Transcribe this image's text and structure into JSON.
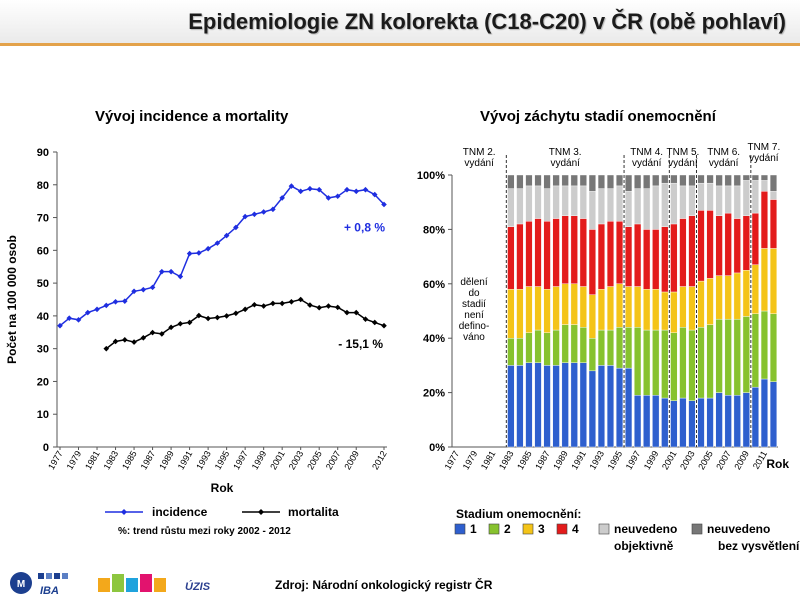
{
  "page": {
    "title": "Epidemiologie ZN kolorekta (C18-C20) v ČR (obě pohlaví)",
    "source": "Zdroj: Národní onkologický registr ČR",
    "logos": [
      "IBA",
      "ÚZIS"
    ]
  },
  "chart_data": [
    {
      "type": "line",
      "title": "Vývoj incidence a mortality",
      "xlabel": "Rok",
      "ylabel": "Počet na 100 000 osob",
      "ylim": [
        0,
        90
      ],
      "yticks": [
        0,
        10,
        20,
        30,
        40,
        50,
        60,
        70,
        80,
        90
      ],
      "x": [
        "1977",
        "1978",
        "1979",
        "1980",
        "1981",
        "1982",
        "1983",
        "1984",
        "1985",
        "1986",
        "1987",
        "1988",
        "1989",
        "1990",
        "1991",
        "1992",
        "1993",
        "1994",
        "1995",
        "1996",
        "1997",
        "1998",
        "1999",
        "2000",
        "2001",
        "2002",
        "2003",
        "2004",
        "2005",
        "2006",
        "2007",
        "2008",
        "2009",
        "2010",
        "2011",
        "2012"
      ],
      "xtick_labels": [
        "1977",
        "1979",
        "1981",
        "1983",
        "1985",
        "1987",
        "1989",
        "1991",
        "1993",
        "1995",
        "1997",
        "1999",
        "2001",
        "2003",
        "2005",
        "2007",
        "2009",
        "2012"
      ],
      "series": [
        {
          "name": "incidence",
          "color": "#1f2ee0",
          "values": [
            37.0,
            39.3,
            38.8,
            41.0,
            42.0,
            43.2,
            44.3,
            44.5,
            47.5,
            48.0,
            48.7,
            53.5,
            53.5,
            52.0,
            59.0,
            59.2,
            60.5,
            62.2,
            64.5,
            67.0,
            70.3,
            71.0,
            71.7,
            72.5,
            76.0,
            79.6,
            78.0,
            78.8,
            78.5,
            76.0,
            76.5,
            78.5,
            78.0,
            78.5,
            77.0,
            74.0
          ]
        },
        {
          "name": "mortalita",
          "color": "#000000",
          "values": [
            null,
            null,
            null,
            null,
            null,
            30.0,
            32.2,
            32.7,
            32.0,
            33.3,
            34.9,
            34.5,
            36.5,
            37.6,
            38.0,
            40.1,
            39.2,
            39.5,
            40.0,
            40.8,
            42.0,
            43.4,
            43.0,
            43.8,
            43.8,
            44.3,
            45.0,
            43.3,
            42.5,
            43.0,
            42.6,
            41.0,
            41.0,
            39.0,
            38.0,
            37.0
          ]
        }
      ],
      "annotations": [
        {
          "text": "+ 0,8 %",
          "series": "incidence",
          "color": "#1f2ee0"
        },
        {
          "text": "- 15,1 %",
          "series": "mortalita",
          "color": "#000000"
        }
      ],
      "legend": {
        "position": "bottom",
        "items": [
          "incidence",
          "mortalita"
        ]
      },
      "note": "%: trend růstu mezi roky 2002 - 2012",
      "grid": false
    },
    {
      "type": "bar",
      "stacked": "percent",
      "title": "Vývoj záchytu stadií onemocnění",
      "xlabel": "Rok",
      "ylim": [
        0,
        100
      ],
      "yticks": [
        "0%",
        "20%",
        "40%",
        "60%",
        "80%",
        "100%"
      ],
      "categories": [
        "1977",
        "1978",
        "1979",
        "1980",
        "1981",
        "1982",
        "1983",
        "1984",
        "1985",
        "1986",
        "1987",
        "1988",
        "1989",
        "1990",
        "1991",
        "1992",
        "1993",
        "1994",
        "1995",
        "1996",
        "1997",
        "1998",
        "1999",
        "2000",
        "2001",
        "2002",
        "2003",
        "2004",
        "2005",
        "2006",
        "2007",
        "2008",
        "2009",
        "2010",
        "2011",
        "2012"
      ],
      "xtick_labels": [
        "1977",
        "1979",
        "1981",
        "1983",
        "1985",
        "1987",
        "1989",
        "1991",
        "1993",
        "1995",
        "1997",
        "1999",
        "2001",
        "2003",
        "2005",
        "2007",
        "2009",
        "2011"
      ],
      "legend": {
        "position": "bottom",
        "title": "Stadium onemocnění:",
        "items": [
          {
            "label": "1",
            "color": "#2e5fce"
          },
          {
            "label": "2",
            "color": "#87c22e"
          },
          {
            "label": "3",
            "color": "#f4c418"
          },
          {
            "label": "4",
            "color": "#e31b1b"
          },
          {
            "label": "neuvedeno objektivně",
            "color": "#cccccc"
          },
          {
            "label": "neuvedeno bez vysvětlení",
            "color": "#777777"
          }
        ]
      },
      "period_labels": [
        {
          "text": "TNM 2. vydání"
        },
        {
          "text": "TNM 3. vydání"
        },
        {
          "text": "TNM 4. vydání"
        },
        {
          "text": "TNM 5. vydání"
        },
        {
          "text": "TNM 6. vydání"
        },
        {
          "text": "TNM 7. vydání"
        }
      ],
      "period_boundaries_after": [
        "1982",
        "1995",
        "2000",
        "2003",
        "2009"
      ],
      "undefined_period_note": "dělení do stadií není definováno",
      "series": [
        {
          "name": "1",
          "values": [
            null,
            null,
            null,
            null,
            null,
            null,
            30,
            30,
            31,
            31,
            30,
            30,
            31,
            31,
            31,
            28,
            30,
            30,
            29,
            29,
            19,
            19,
            19,
            18,
            17,
            18,
            17,
            18,
            18,
            20,
            19,
            19,
            20,
            22,
            25,
            24
          ]
        },
        {
          "name": "2",
          "values": [
            null,
            null,
            null,
            null,
            null,
            null,
            10,
            10,
            11,
            12,
            12,
            13,
            14,
            14,
            13,
            12,
            13,
            13,
            15,
            15,
            25,
            24,
            24,
            25,
            25,
            26,
            26,
            26,
            27,
            27,
            28,
            28,
            28,
            27,
            25,
            25
          ]
        },
        {
          "name": "3",
          "values": [
            null,
            null,
            null,
            null,
            null,
            null,
            18,
            18,
            17,
            16,
            16,
            16,
            15,
            15,
            15,
            16,
            15,
            16,
            16,
            15,
            15,
            15,
            15,
            14,
            15,
            15,
            16,
            17,
            17,
            16,
            16,
            17,
            17,
            18,
            23,
            24
          ]
        },
        {
          "name": "4",
          "values": [
            null,
            null,
            null,
            null,
            null,
            null,
            23,
            24,
            24,
            25,
            25,
            25,
            25,
            25,
            25,
            24,
            24,
            24,
            23,
            22,
            23,
            22,
            22,
            24,
            25,
            25,
            26,
            26,
            25,
            22,
            23,
            20,
            20,
            19,
            21,
            18
          ]
        },
        {
          "name": "neuvedeno objektivně",
          "values": [
            null,
            null,
            null,
            null,
            null,
            null,
            14,
            13,
            13,
            12,
            12,
            12,
            11,
            11,
            12,
            14,
            13,
            12,
            13,
            13,
            13,
            15,
            16,
            16,
            15,
            12,
            11,
            10,
            10,
            11,
            10,
            12,
            13,
            12,
            4,
            3
          ]
        },
        {
          "name": "neuvedeno bez vysvětlení",
          "values": [
            null,
            null,
            null,
            null,
            null,
            null,
            5,
            5,
            4,
            4,
            5,
            4,
            4,
            4,
            4,
            6,
            5,
            5,
            4,
            6,
            5,
            5,
            4,
            3,
            3,
            4,
            4,
            3,
            3,
            4,
            4,
            4,
            2,
            2,
            2,
            6
          ]
        }
      ],
      "grid": false
    }
  ]
}
